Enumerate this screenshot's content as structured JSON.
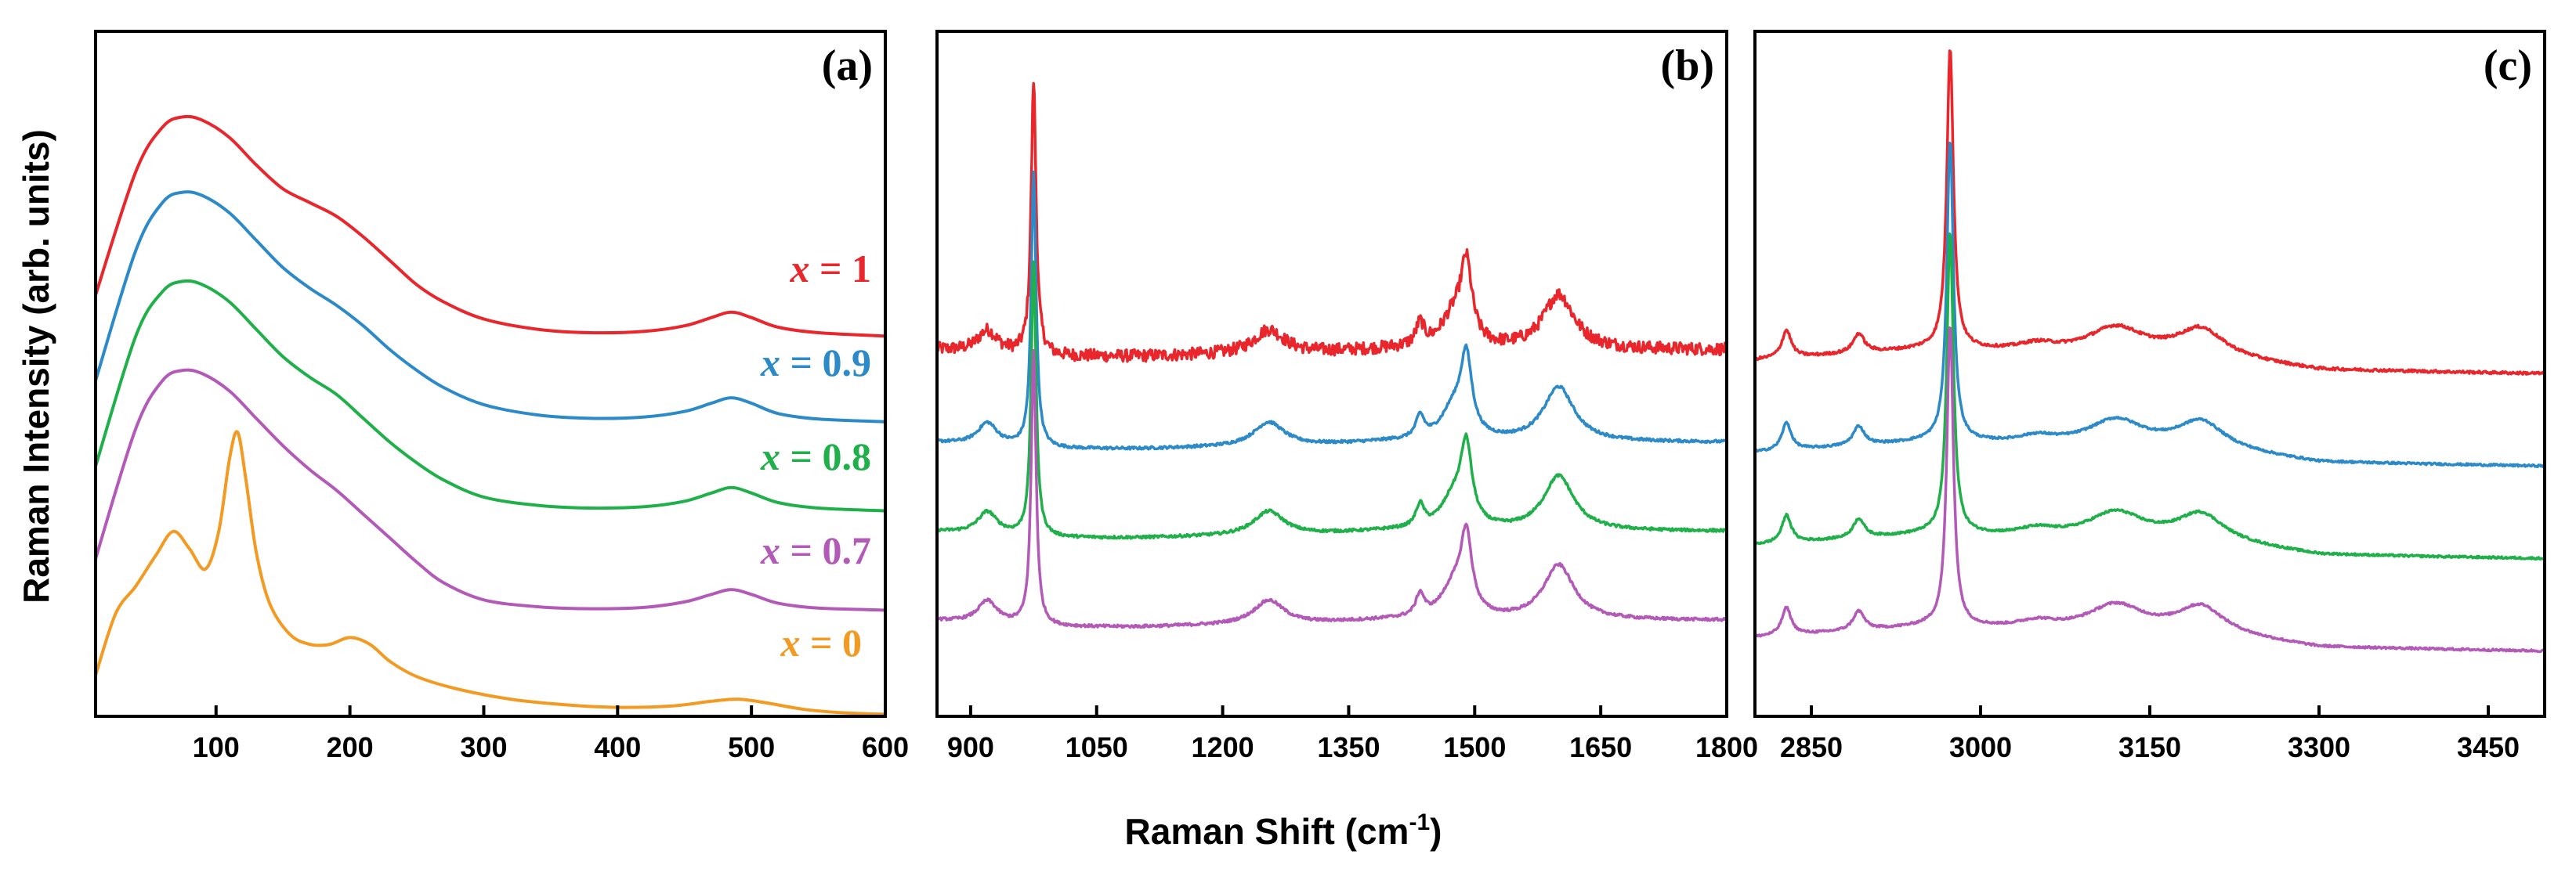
{
  "figure": {
    "ylabel": "Raman Intensity (arb. units)",
    "xlabel_main": "Raman Shift (cm",
    "xlabel_sup": "-1",
    "xlabel_close": ")"
  },
  "colors": {
    "x=1": "#e8262b",
    "x=0.9": "#2c8ac9",
    "x=0.8": "#1fb04a",
    "x=0.7": "#b35ab8",
    "x=0": "#f39a22"
  },
  "chart_data": [
    {
      "type": "line",
      "panel": "(a)",
      "xlabel": "Raman Shift (cm-1)",
      "ylabel": "Raman Intensity (arb. units)",
      "xlim": [
        10,
        600
      ],
      "ylim": [
        0,
        10
      ],
      "xticks": [
        100,
        200,
        300,
        400,
        500,
        600
      ],
      "xtick_labels": [
        "100",
        "200",
        "300",
        "400",
        "500",
        "600"
      ],
      "series": [
        {
          "name": "x = 1",
          "color_key": "x=1",
          "label_var": "x",
          "label_val": "= 1",
          "x": [
            10,
            40,
            60,
            75,
            90,
            110,
            130,
            150,
            170,
            190,
            210,
            230,
            250,
            270,
            300,
            340,
            380,
            420,
            450,
            470,
            485,
            500,
            520,
            550,
            600
          ],
          "y": [
            6.15,
            7.95,
            8.6,
            8.75,
            8.7,
            8.45,
            8.05,
            7.7,
            7.5,
            7.3,
            7.0,
            6.65,
            6.3,
            6.05,
            5.8,
            5.65,
            5.6,
            5.62,
            5.7,
            5.82,
            5.9,
            5.82,
            5.68,
            5.6,
            5.55
          ]
        },
        {
          "name": "x = 0.9",
          "color_key": "x=0.9",
          "label_var": "x",
          "label_val": "= 0.9",
          "x": [
            10,
            40,
            60,
            75,
            90,
            110,
            130,
            150,
            170,
            190,
            210,
            230,
            250,
            270,
            300,
            340,
            380,
            420,
            450,
            470,
            485,
            500,
            520,
            550,
            600
          ],
          "y": [
            4.9,
            6.8,
            7.5,
            7.65,
            7.6,
            7.35,
            6.95,
            6.55,
            6.25,
            6.0,
            5.7,
            5.35,
            5.05,
            4.8,
            4.55,
            4.4,
            4.35,
            4.37,
            4.45,
            4.57,
            4.65,
            4.57,
            4.42,
            4.34,
            4.3
          ]
        },
        {
          "name": "x = 0.8",
          "color_key": "x=0.8",
          "label_var": "x",
          "label_val": "= 0.8",
          "x": [
            10,
            40,
            60,
            75,
            90,
            110,
            130,
            150,
            170,
            190,
            210,
            230,
            250,
            270,
            300,
            340,
            380,
            420,
            450,
            470,
            485,
            500,
            520,
            550,
            600
          ],
          "y": [
            3.65,
            5.55,
            6.2,
            6.35,
            6.3,
            6.05,
            5.65,
            5.25,
            4.95,
            4.7,
            4.35,
            4.0,
            3.7,
            3.45,
            3.2,
            3.08,
            3.04,
            3.06,
            3.14,
            3.26,
            3.34,
            3.26,
            3.12,
            3.04,
            3.0
          ]
        },
        {
          "name": "x = 0.7",
          "color_key": "x=0.7",
          "label_var": "x",
          "label_val": "= 0.7",
          "x": [
            10,
            40,
            60,
            75,
            90,
            110,
            130,
            150,
            170,
            190,
            210,
            230,
            250,
            270,
            300,
            340,
            380,
            420,
            450,
            470,
            485,
            500,
            520,
            550,
            600
          ],
          "y": [
            2.3,
            4.2,
            4.9,
            5.05,
            5.0,
            4.75,
            4.35,
            3.95,
            3.6,
            3.3,
            2.95,
            2.6,
            2.25,
            1.95,
            1.7,
            1.6,
            1.57,
            1.59,
            1.67,
            1.78,
            1.85,
            1.78,
            1.65,
            1.58,
            1.55
          ]
        },
        {
          "name": "x = 0",
          "color_key": "x=0",
          "label_var": "x",
          "label_val": "= 0",
          "x": [
            10,
            25,
            40,
            55,
            68,
            80,
            92,
            102,
            110,
            116,
            122,
            130,
            140,
            155,
            170,
            185,
            200,
            215,
            230,
            250,
            280,
            320,
            360,
            400,
            440,
            470,
            490,
            510,
            540,
            570,
            600
          ],
          "y": [
            0.6,
            1.5,
            1.9,
            2.35,
            2.7,
            2.45,
            2.15,
            2.7,
            3.75,
            4.15,
            3.5,
            2.4,
            1.65,
            1.2,
            1.05,
            1.05,
            1.15,
            1.05,
            0.8,
            0.58,
            0.4,
            0.25,
            0.17,
            0.13,
            0.15,
            0.22,
            0.25,
            0.2,
            0.1,
            0.05,
            0.03
          ]
        }
      ]
    },
    {
      "type": "line",
      "panel": "(b)",
      "xlim": [
        860,
        1800
      ],
      "ylim": [
        0,
        10
      ],
      "xticks": [
        900,
        1050,
        1200,
        1350,
        1500,
        1650,
        1800
      ],
      "xtick_labels": [
        "900",
        "1050",
        "1200",
        "1350",
        "1500",
        "1650",
        "1800"
      ],
      "series": [
        {
          "name": "x = 1",
          "color_key": "x=1",
          "offset": 5.35,
          "noise": 0.09
        },
        {
          "name": "x = 0.9",
          "color_key": "x=0.9",
          "offset": 4.0,
          "noise": 0.02
        },
        {
          "name": "x = 0.8",
          "color_key": "x=0.8",
          "offset": 2.7,
          "noise": 0.02
        },
        {
          "name": "x = 0.7",
          "color_key": "x=0.7",
          "offset": 1.4,
          "noise": 0.02
        }
      ],
      "baseline": {
        "x": [
          860,
          1000,
          1100,
          1300,
          1400,
          1800
        ],
        "y": [
          0.0,
          -0.1,
          -0.1,
          -0.05,
          0.0,
          0.0
        ]
      },
      "peaks": [
        {
          "center": 920,
          "height": 0.32,
          "width": 14
        },
        {
          "center": 975,
          "height": 4.0,
          "width": 3.5
        },
        {
          "center": 1255,
          "height": 0.35,
          "width": 22
        },
        {
          "center": 1435,
          "height": 0.32,
          "width": 6
        },
        {
          "center": 1475,
          "height": 0.45,
          "width": 18
        },
        {
          "center": 1490,
          "height": 1.1,
          "width": 8
        },
        {
          "center": 1600,
          "height": 0.8,
          "width": 22
        }
      ]
    },
    {
      "type": "line",
      "panel": "(c)",
      "xlim": [
        2800,
        3500
      ],
      "ylim": [
        0,
        10
      ],
      "xticks": [
        2850,
        3000,
        3150,
        3300,
        3450
      ],
      "xtick_labels": [
        "2850",
        "3000",
        "3150",
        "3300",
        "3450"
      ],
      "series": [
        {
          "name": "x = 1",
          "color_key": "x=1",
          "offset": 5.2,
          "noise": 0.02
        },
        {
          "name": "x = 0.9",
          "color_key": "x=0.9",
          "offset": 3.85,
          "noise": 0.015
        },
        {
          "name": "x = 0.8",
          "color_key": "x=0.8",
          "offset": 2.5,
          "noise": 0.015
        },
        {
          "name": "x = 0.7",
          "color_key": "x=0.7",
          "offset": 1.15,
          "noise": 0.015
        }
      ],
      "baseline": {
        "x": [
          2800,
          2950,
          3200,
          3300,
          3500
        ],
        "y": [
          0.0,
          0.15,
          0.05,
          -0.15,
          -0.2
        ]
      },
      "peaks": [
        {
          "center": 2828,
          "height": 0.4,
          "width": 5
        },
        {
          "center": 2892,
          "height": 0.28,
          "width": 6
        },
        {
          "center": 2973,
          "height": 4.4,
          "width": 3.5
        },
        {
          "center": 3050,
          "height": 0.1,
          "width": 20
        },
        {
          "center": 3120,
          "height": 0.38,
          "width": 30
        },
        {
          "center": 3195,
          "height": 0.38,
          "width": 25
        }
      ]
    }
  ]
}
